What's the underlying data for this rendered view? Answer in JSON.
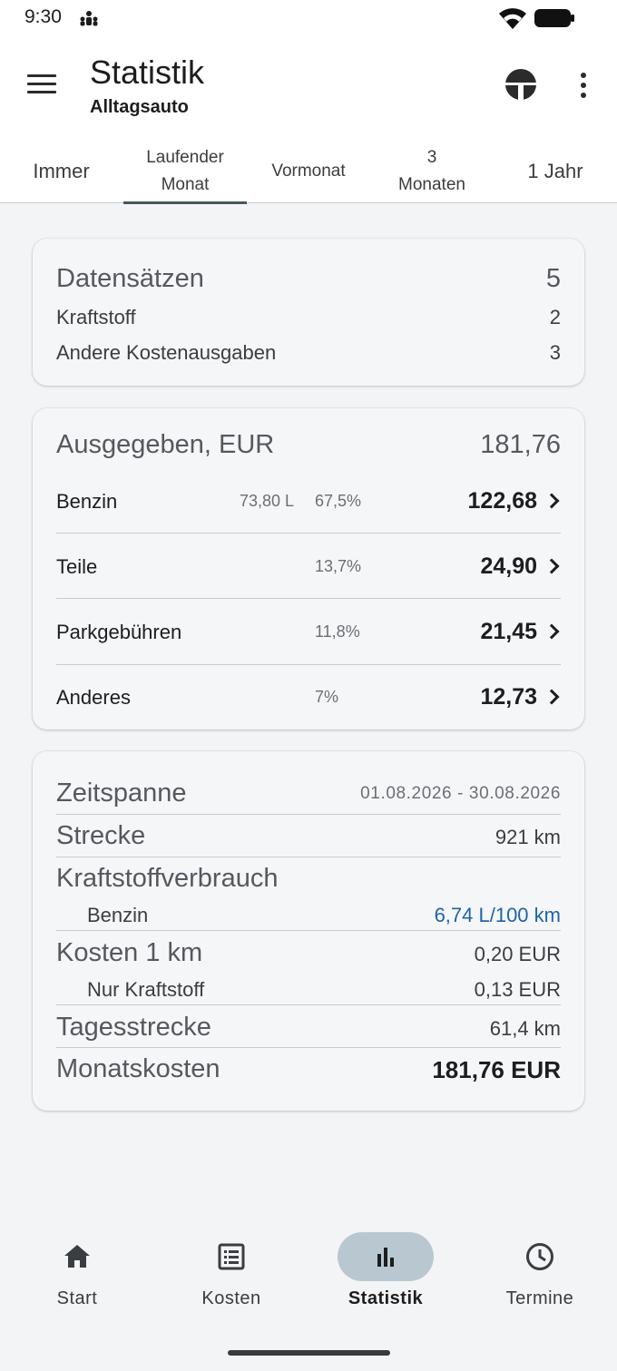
{
  "status_bar": {
    "time": "9:30"
  },
  "app_bar": {
    "title": "Statistik",
    "subtitle": "Alltagsauto",
    "icons": [
      "menu-icon",
      "brand-logo-icon",
      "more-vert-icon"
    ]
  },
  "tabs": [
    {
      "label": "Immer",
      "active": false
    },
    {
      "label": "Laufender\nMonat",
      "active": true
    },
    {
      "label": "Vormonat",
      "active": false
    },
    {
      "label": "3\nMonaten",
      "active": false
    },
    {
      "label": "1 Jahr",
      "active": false
    }
  ],
  "records_card": {
    "title": "Datensätzen",
    "total": "5",
    "rows": [
      {
        "label": "Kraftstoff",
        "value": "2"
      },
      {
        "label": "Andere Kostenausgaben",
        "value": "3"
      }
    ]
  },
  "spent_card": {
    "title": "Ausgegeben, EUR",
    "total": "181,76",
    "rows": [
      {
        "label": "Benzin",
        "liters": "73,80 L",
        "percent": "67,5%",
        "amount": "122,68"
      },
      {
        "label": "Teile",
        "liters": "",
        "percent": "13,7%",
        "amount": "24,90"
      },
      {
        "label": "Parkgebühren",
        "liters": "",
        "percent": "11,8%",
        "amount": "21,45"
      },
      {
        "label": "Anderes",
        "liters": "",
        "percent": "7%",
        "amount": "12,73"
      }
    ]
  },
  "summary_card": {
    "period_label": "Zeitspanne",
    "period_value": "01.08.2026 - 30.08.2026",
    "distance_label": "Strecke",
    "distance_value": "921 km",
    "consumption_label": "Kraftstoffverbrauch",
    "consumption_fuel_label": "Benzin",
    "consumption_fuel_value": "6,74 L/100 km",
    "cost_km_label": "Kosten 1 km",
    "cost_km_value": "0,20 EUR",
    "fuel_only_label": "Nur Kraftstoff",
    "fuel_only_value": "0,13 EUR",
    "daily_label": "Tagesstrecke",
    "daily_value": "61,4 km",
    "monthly_label": "Monatskosten",
    "monthly_value": "181,76 EUR"
  },
  "bottom_nav": [
    {
      "label": "Start",
      "icon": "home-icon",
      "active": false
    },
    {
      "label": "Kosten",
      "icon": "list-icon",
      "active": false
    },
    {
      "label": "Statistik",
      "icon": "bar-chart-icon",
      "active": true
    },
    {
      "label": "Termine",
      "icon": "clock-icon",
      "active": false
    }
  ],
  "colors": {
    "accent_link": "#1f63a8",
    "active_pill": "#b9c8d0",
    "tab_indicator": "#46585f"
  }
}
